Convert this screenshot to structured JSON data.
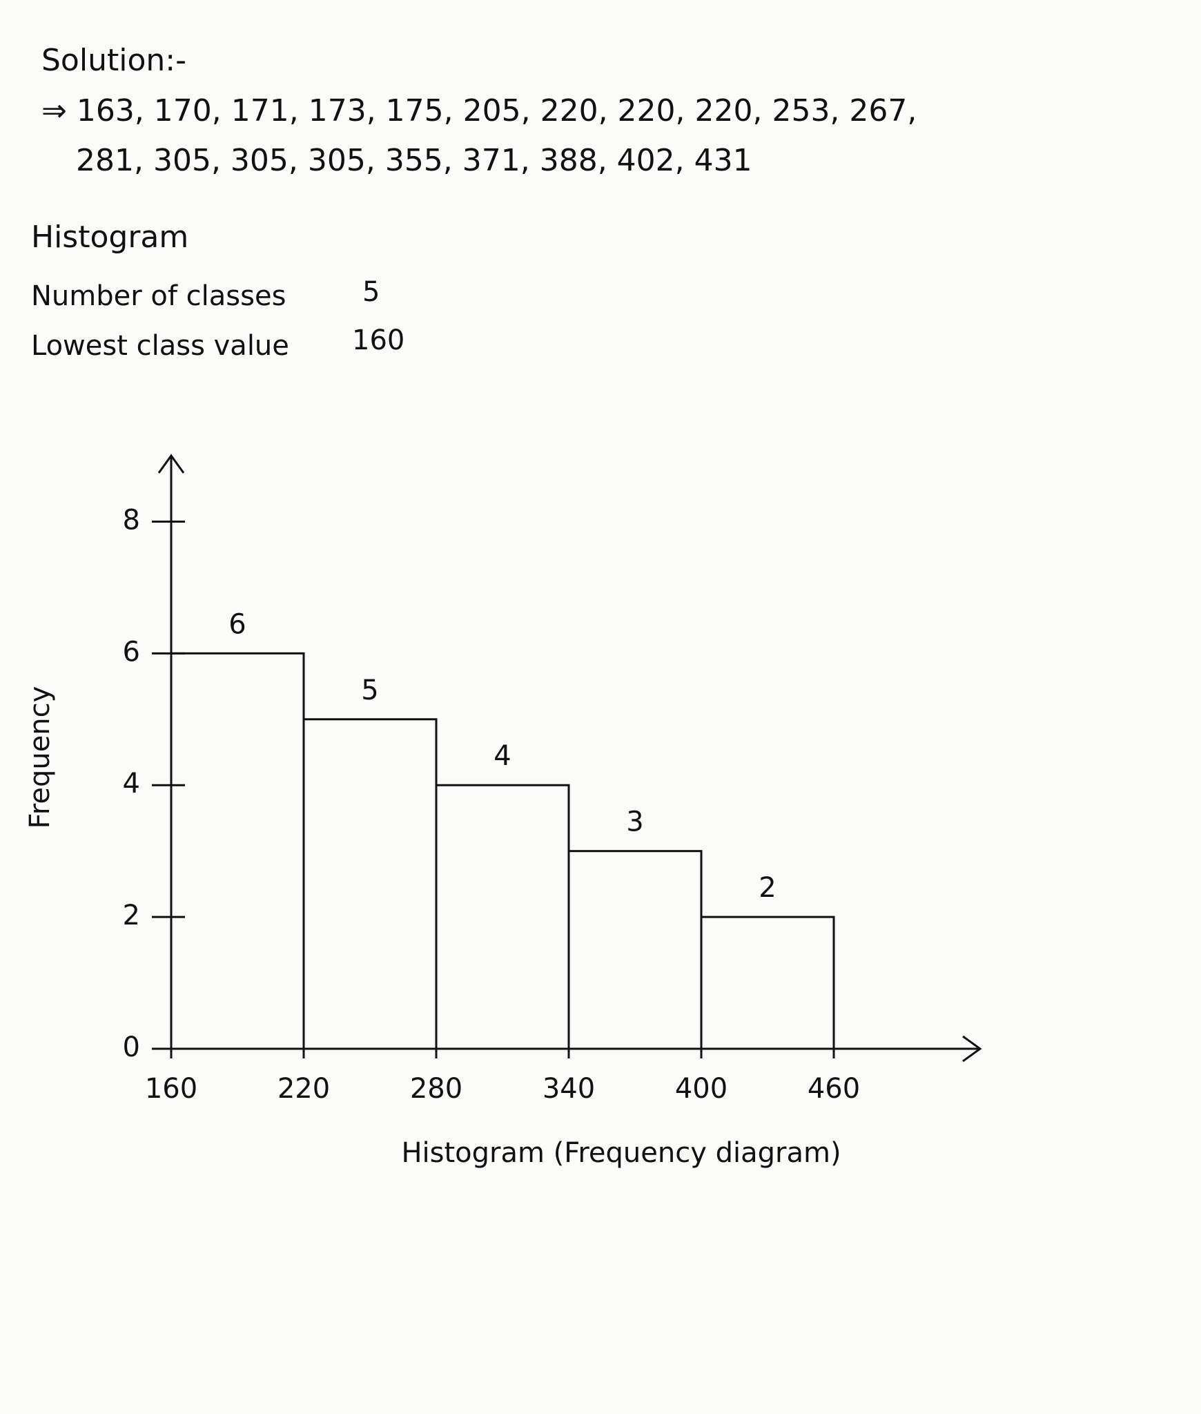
{
  "solution": {
    "heading": "Solution:-",
    "lines": [
      "⇒ 163, 170, 171, 173, 175, 205, 220, 220, 220, 253, 267,",
      "281, 305, 305, 305, 355, 371, 388, 402, 431"
    ],
    "section": "Histogram",
    "classes_label": "Number of classes",
    "classes": 5,
    "lowest_label": "Lowest class value",
    "lowest": 160
  },
  "chart_data": {
    "type": "histogram",
    "title": "Histogram (Frequency diagram)",
    "ylabel": "Frequency",
    "bins": [
      160,
      220,
      280,
      340,
      400,
      460
    ],
    "values": [
      6,
      5,
      4,
      3,
      2
    ],
    "color": "#111111",
    "xlim": [
      160,
      520
    ],
    "ylim": [
      0,
      9
    ],
    "yticks": [
      0,
      2,
      4,
      6,
      8
    ],
    "grid": false
  }
}
